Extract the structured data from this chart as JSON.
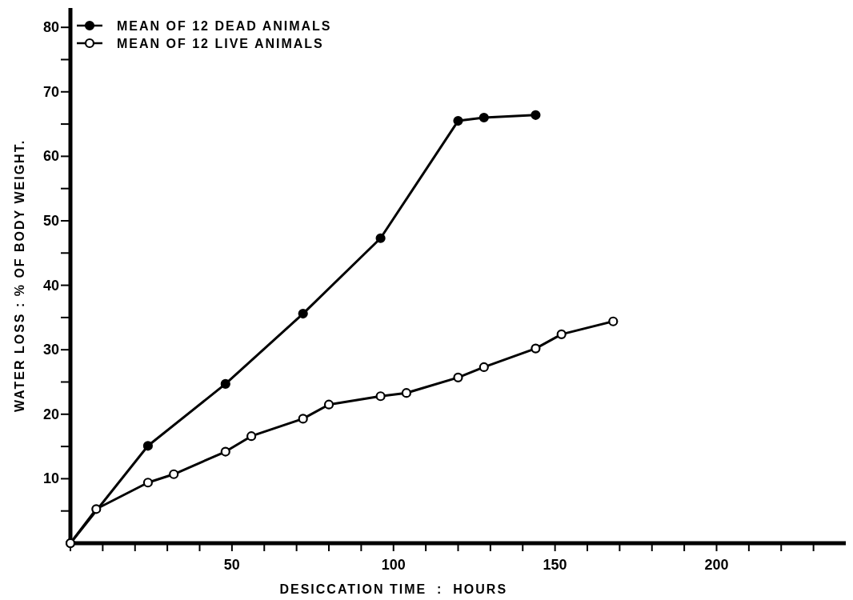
{
  "chart_data": {
    "type": "line",
    "xlabel": "DESICCATION TIME  :  HOURS",
    "ylabel": "WATER LOSS : % OF BODY WEIGHT.",
    "xlim": [
      0,
      240
    ],
    "ylim": [
      0,
      83
    ],
    "xticks": [
      {
        "value": 0,
        "label": null
      },
      {
        "value": 10,
        "label": null
      },
      {
        "value": 20,
        "label": null
      },
      {
        "value": 30,
        "label": null
      },
      {
        "value": 40,
        "label": null
      },
      50,
      {
        "value": 60,
        "label": null
      },
      {
        "value": 70,
        "label": null
      },
      {
        "value": 80,
        "label": null
      },
      {
        "value": 90,
        "label": null
      },
      100,
      {
        "value": 110,
        "label": null
      },
      {
        "value": 120,
        "label": null
      },
      {
        "value": 130,
        "label": null
      },
      {
        "value": 140,
        "label": null
      },
      150,
      {
        "value": 160,
        "label": null
      },
      {
        "value": 170,
        "label": null
      },
      {
        "value": 180,
        "label": null
      },
      {
        "value": 190,
        "label": null
      },
      200,
      {
        "value": 210,
        "label": null
      },
      {
        "value": 220,
        "label": null
      },
      {
        "value": 230,
        "label": null
      }
    ],
    "yticks": [
      {
        "value": 5,
        "label": null
      },
      10,
      {
        "value": 15,
        "label": null
      },
      20,
      {
        "value": 25,
        "label": null
      },
      30,
      {
        "value": 35,
        "label": null
      },
      40,
      {
        "value": 45,
        "label": null
      },
      50,
      {
        "value": 55,
        "label": null
      },
      60,
      {
        "value": 65,
        "label": null
      },
      70,
      {
        "value": 75,
        "label": null
      },
      80
    ],
    "grid": false,
    "legend": "top left",
    "line_style": "solid",
    "series": [
      {
        "name": "MEAN OF 12 DEAD ANIMALS",
        "color": "#000000",
        "marker": "circle",
        "x": [
          0,
          24,
          48,
          72,
          96,
          120,
          128,
          144
        ],
        "values": [
          0,
          15.1,
          24.7,
          35.6,
          47.3,
          65.5,
          66.0,
          66.4
        ]
      },
      {
        "name": "MEAN OF 12 LIVE ANIMALS",
        "color": "#000000",
        "marker": "circle",
        "x": [
          0,
          8,
          24,
          32,
          48,
          56,
          72,
          80,
          96,
          104,
          120,
          128,
          144,
          152,
          168
        ],
        "values": [
          0,
          5.3,
          9.4,
          10.7,
          14.2,
          16.6,
          19.3,
          21.5,
          22.8,
          23.3,
          25.7,
          27.3,
          30.2,
          32.4,
          34.4
        ]
      }
    ]
  }
}
